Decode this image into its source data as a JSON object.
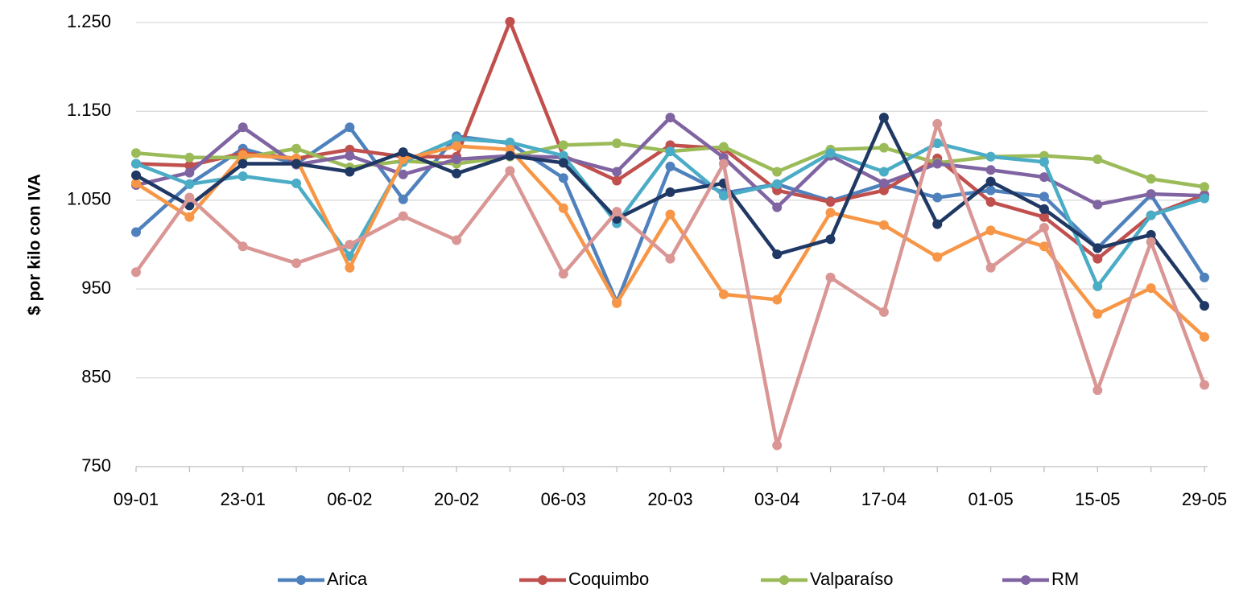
{
  "chart_data": {
    "type": "line",
    "y_label": "$ por kilo con IVA",
    "categories": [
      "09-01",
      null,
      "23-01",
      null,
      "06-02",
      null,
      "20-02",
      null,
      "06-03",
      null,
      "20-03",
      null,
      "03-04",
      null,
      "17-04",
      null,
      "01-05",
      null,
      "15-05",
      null,
      "29-05"
    ],
    "ylim": [
      750,
      1250
    ],
    "yticks": [
      750,
      850,
      950,
      {
        "value": 1050,
        "label": "1.050"
      },
      {
        "value": 1150,
        "label": "1.150"
      },
      {
        "value": 1250,
        "label": "1.250"
      }
    ],
    "grid": true,
    "legend": "bottom",
    "series": [
      {
        "name": "Arica",
        "color": "#4f81bd",
        "values": [
          1014,
          1068,
          1108,
          1091,
          1132,
          1051,
          1122,
          1114,
          1075,
          935,
          1088,
          1058,
          1068,
          1049,
          1068,
          1053,
          1061,
          1054,
          996,
          1056,
          963
        ]
      },
      {
        "name": "Coquimbo",
        "color": "#c0504d",
        "values": [
          1091,
          1089,
          1103,
          1097,
          1107,
          1099,
          1099,
          1251,
          1100,
          1072,
          1112,
          1108,
          1061,
          1048,
          1061,
          1097,
          1048,
          1031,
          984,
          1033,
          1056
        ]
      },
      {
        "name": "Valparaíso",
        "color": "#9bbb59",
        "values": [
          1103,
          1098,
          1098,
          1108,
          1087,
          1094,
          1091,
          1099,
          1112,
          1114,
          1105,
          1110,
          1082,
          1107,
          1109,
          1092,
          1099,
          1100,
          1096,
          1074,
          1065
        ]
      },
      {
        "name": "RM",
        "color": "#8064a2",
        "values": [
          1067,
          1081,
          1132,
          1090,
          1100,
          1079,
          1096,
          1100,
          1098,
          1082,
          1143,
          1098,
          1042,
          1100,
          1069,
          1091,
          1084,
          1076,
          1045,
          1057,
          1055
        ]
      },
      {
        "color": "#4bacc6",
        "values": [
          1091,
          1068,
          1077,
          1069,
          987,
          1093,
          1119,
          1115,
          1100,
          1024,
          1105,
          1055,
          1068,
          1103,
          1082,
          1114,
          1099,
          1093,
          953,
          1033,
          1052
        ]
      },
      {
        "color": "#f79646",
        "values": [
          1069,
          1031,
          1101,
          1097,
          974,
          1096,
          1111,
          1107,
          1041,
          934,
          1034,
          944,
          938,
          1036,
          1022,
          986,
          1016,
          998,
          922,
          951,
          896
        ]
      },
      {
        "color": "#1f3864",
        "values": [
          1078,
          1044,
          1091,
          1091,
          1082,
          1104,
          1080,
          1100,
          1092,
          1029,
          1059,
          1069,
          989,
          1006,
          1143,
          1023,
          1071,
          1040,
          996,
          1011,
          931
        ]
      },
      {
        "color": "#d99694",
        "values": [
          969,
          1053,
          998,
          979,
          1000,
          1032,
          1005,
          1083,
          967,
          1037,
          984,
          1091,
          774,
          963,
          924,
          1136,
          974,
          1019,
          836,
          1003,
          842
        ]
      }
    ]
  }
}
